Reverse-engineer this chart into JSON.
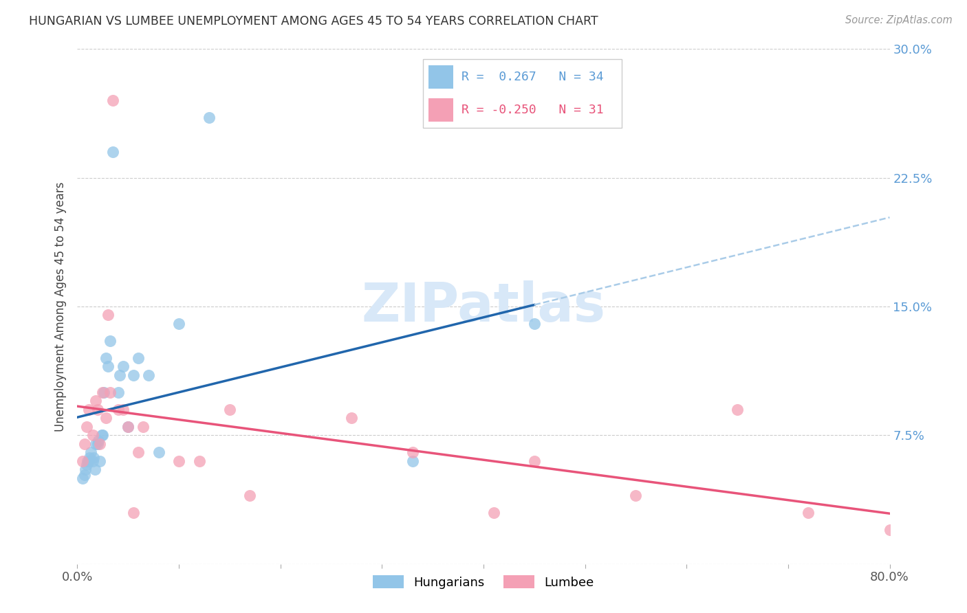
{
  "title": "HUNGARIAN VS LUMBEE UNEMPLOYMENT AMONG AGES 45 TO 54 YEARS CORRELATION CHART",
  "source": "Source: ZipAtlas.com",
  "ylabel": "Unemployment Among Ages 45 to 54 years",
  "xlim": [
    0.0,
    0.8
  ],
  "ylim": [
    0.0,
    0.3
  ],
  "yticks": [
    0.0,
    0.075,
    0.15,
    0.225,
    0.3
  ],
  "ytick_labels": [
    "",
    "7.5%",
    "15.0%",
    "22.5%",
    "30.0%"
  ],
  "xticks": [
    0.0,
    0.1,
    0.2,
    0.3,
    0.4,
    0.5,
    0.6,
    0.7,
    0.8
  ],
  "xtick_labels": [
    "0.0%",
    "",
    "",
    "",
    "",
    "",
    "",
    "",
    "80.0%"
  ],
  "hungarian_R": "0.267",
  "hungarian_N": "34",
  "lumbee_R": "-0.250",
  "lumbee_N": "31",
  "hungarian_color": "#92C5E8",
  "lumbee_color": "#F4A0B5",
  "hungarian_line_color": "#2166AC",
  "lumbee_line_color": "#E8547A",
  "dashed_line_color": "#AACCE8",
  "background_color": "#FFFFFF",
  "watermark_text": "ZIPatlas",
  "watermark_color": "#D8E8F8",
  "hungarian_x": [
    0.005,
    0.007,
    0.008,
    0.009,
    0.01,
    0.011,
    0.012,
    0.013,
    0.015,
    0.016,
    0.017,
    0.018,
    0.02,
    0.021,
    0.022,
    0.024,
    0.025,
    0.026,
    0.028,
    0.03,
    0.032,
    0.035,
    0.04,
    0.042,
    0.045,
    0.05,
    0.055,
    0.06,
    0.07,
    0.08,
    0.1,
    0.13,
    0.33,
    0.45
  ],
  "hungarian_y": [
    0.05,
    0.052,
    0.055,
    0.058,
    0.06,
    0.06,
    0.062,
    0.065,
    0.06,
    0.062,
    0.055,
    0.07,
    0.07,
    0.072,
    0.06,
    0.075,
    0.075,
    0.1,
    0.12,
    0.115,
    0.13,
    0.24,
    0.1,
    0.11,
    0.115,
    0.08,
    0.11,
    0.12,
    0.11,
    0.065,
    0.14,
    0.26,
    0.06,
    0.14
  ],
  "lumbee_x": [
    0.005,
    0.007,
    0.009,
    0.011,
    0.015,
    0.018,
    0.02,
    0.022,
    0.025,
    0.028,
    0.03,
    0.032,
    0.035,
    0.04,
    0.045,
    0.05,
    0.055,
    0.06,
    0.065,
    0.1,
    0.12,
    0.15,
    0.17,
    0.27,
    0.33,
    0.41,
    0.45,
    0.55,
    0.65,
    0.72,
    0.8
  ],
  "lumbee_y": [
    0.06,
    0.07,
    0.08,
    0.09,
    0.075,
    0.095,
    0.09,
    0.07,
    0.1,
    0.085,
    0.145,
    0.1,
    0.27,
    0.09,
    0.09,
    0.08,
    0.03,
    0.065,
    0.08,
    0.06,
    0.06,
    0.09,
    0.04,
    0.085,
    0.065,
    0.03,
    0.06,
    0.04,
    0.09,
    0.03,
    0.02
  ]
}
